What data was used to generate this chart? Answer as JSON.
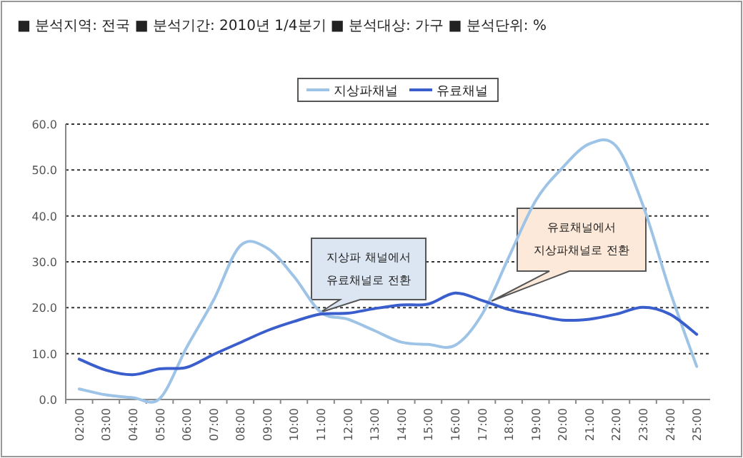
{
  "chart_data": {
    "type": "line",
    "title": "■ 분석지역: 전국 ■ 분석기간: 2010년 1/4분기 ■ 분석대상: 가구 ■ 분석단위: %",
    "categories": [
      "02:00",
      "03:00",
      "04:00",
      "05:00",
      "06:00",
      "07:00",
      "08:00",
      "09:00",
      "10:00",
      "11:00",
      "12:00",
      "13:00",
      "14:00",
      "15:00",
      "16:00",
      "17:00",
      "18:00",
      "19:00",
      "20:00",
      "21:00",
      "22:00",
      "23:00",
      "24:00",
      "25:00"
    ],
    "series": [
      {
        "name": "지상파채널",
        "color": "#9dc3e6",
        "values": [
          2.3,
          1.0,
          0.4,
          0.2,
          11.3,
          21.6,
          33.5,
          33,
          26.8,
          19,
          17.5,
          15,
          12.5,
          12,
          11.8,
          18.5,
          31,
          43.3,
          50.5,
          55.7,
          55.2,
          42.3,
          23.7,
          7.2
        ]
      },
      {
        "name": "유료채널",
        "color": "#3a5fcd",
        "values": [
          8.8,
          6.4,
          5.4,
          6.7,
          7,
          9.8,
          12.4,
          15,
          17,
          18.6,
          18.8,
          19.8,
          20.6,
          20.8,
          23.2,
          21.6,
          19.6,
          18.4,
          17.3,
          17.5,
          18.6,
          20.1,
          18.6,
          14.2
        ]
      }
    ],
    "ylim": [
      0,
      60
    ],
    "yticks": [
      {
        "value": 0,
        "label": "0.0"
      },
      {
        "value": 10,
        "label": "10.0"
      },
      {
        "value": 20,
        "label": "20.0"
      },
      {
        "value": 30,
        "label": "30.0"
      },
      {
        "value": 40,
        "label": "40.0"
      },
      {
        "value": 50,
        "label": "50.0"
      },
      {
        "value": 60,
        "label": "60.0"
      }
    ],
    "grid": "y",
    "legend": "top",
    "marker": "none",
    "line_style": "solid",
    "annotations": [
      "지상파  채널에서\n유료채널로 전환",
      "유료채널에서\n지상파채널로 전환"
    ]
  }
}
